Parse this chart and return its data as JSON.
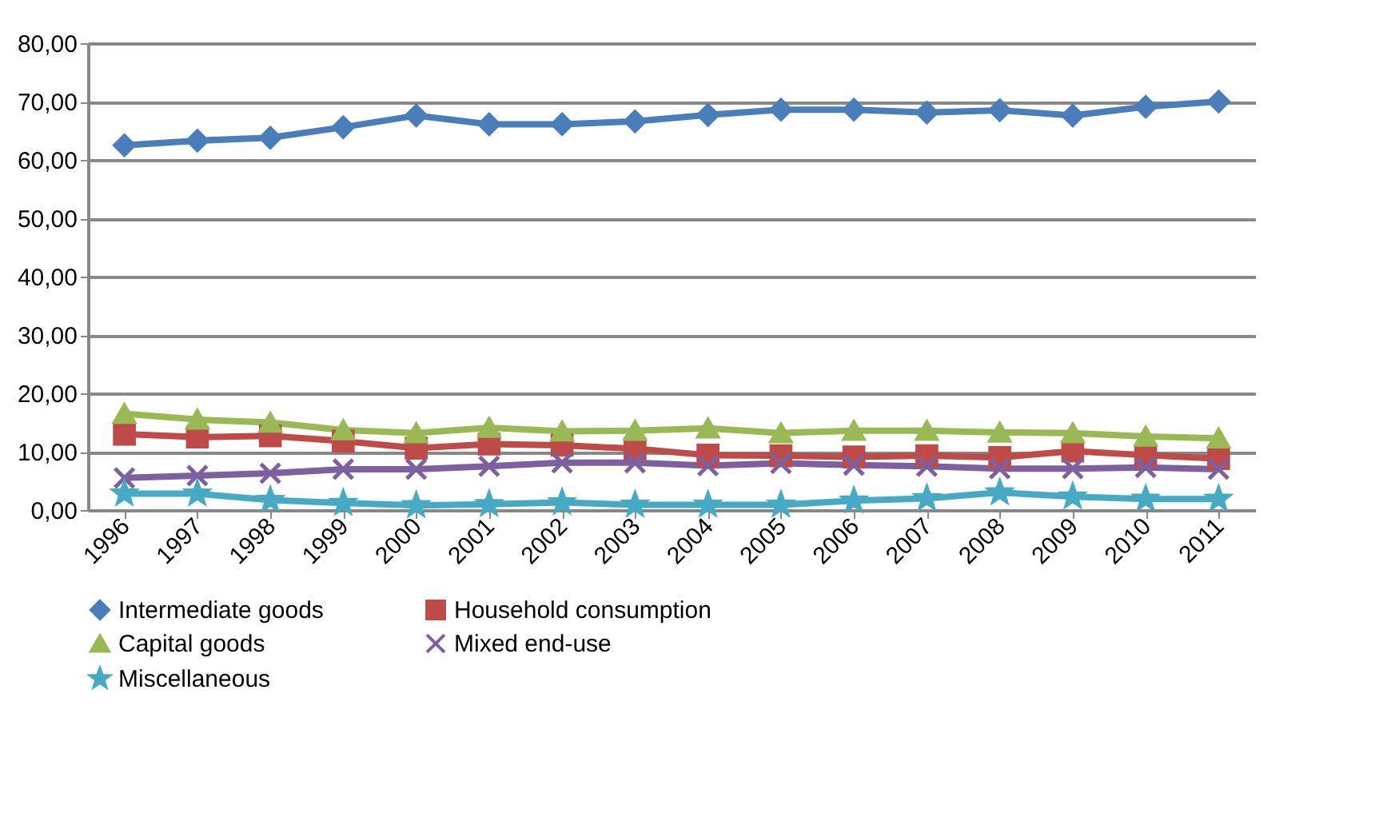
{
  "chart_data": {
    "type": "line",
    "categories": [
      "1996",
      "1997",
      "1998",
      "1999",
      "2000",
      "2001",
      "2002",
      "2003",
      "2004",
      "2005",
      "2006",
      "2007",
      "2008",
      "2009",
      "2010",
      "2011"
    ],
    "series": [
      {
        "name": "Intermediate goods",
        "color": "#4a7ebb",
        "marker": "diamond",
        "values": [
          62.5,
          63.3,
          63.8,
          65.6,
          67.6,
          66.1,
          66.1,
          66.6,
          67.7,
          68.6,
          68.6,
          68.1,
          68.5,
          67.6,
          69.1,
          70.0
        ]
      },
      {
        "name": "Household consumption",
        "color": "#be4b48",
        "marker": "square",
        "values": [
          13.0,
          12.5,
          12.7,
          11.8,
          10.6,
          11.3,
          11.1,
          10.5,
          9.4,
          9.3,
          9.1,
          9.3,
          9.0,
          10.1,
          9.4,
          8.8
        ]
      },
      {
        "name": "Capital goods",
        "color": "#98b954",
        "marker": "triangle",
        "values": [
          16.5,
          15.5,
          15.0,
          13.7,
          13.2,
          14.1,
          13.5,
          13.6,
          14.0,
          13.2,
          13.6,
          13.6,
          13.3,
          13.2,
          12.6,
          12.3
        ]
      },
      {
        "name": "Mixed end-use",
        "color": "#7d60a0",
        "marker": "cross",
        "values": [
          5.5,
          5.9,
          6.3,
          7.0,
          7.0,
          7.5,
          8.1,
          8.1,
          7.6,
          8.0,
          7.7,
          7.5,
          7.1,
          7.1,
          7.3,
          7.0
        ]
      },
      {
        "name": "Miscellaneous",
        "color": "#46aac5",
        "marker": "star",
        "values": [
          2.8,
          2.8,
          1.7,
          1.2,
          0.8,
          1.0,
          1.3,
          0.9,
          0.9,
          0.9,
          1.6,
          2.0,
          3.0,
          2.3,
          1.9,
          1.9
        ]
      }
    ],
    "ylim": [
      0,
      80
    ],
    "yticks": [
      {
        "value": 0,
        "label": "0,00"
      },
      {
        "value": 10,
        "label": "10,00"
      },
      {
        "value": 20,
        "label": "20,00"
      },
      {
        "value": 30,
        "label": "30,00"
      },
      {
        "value": 40,
        "label": "40,00"
      },
      {
        "value": 50,
        "label": "50,00"
      },
      {
        "value": 60,
        "label": "60,00"
      },
      {
        "value": 70,
        "label": "70,00"
      },
      {
        "value": 80,
        "label": "80,00"
      }
    ],
    "grid": "y",
    "legend": "bottom",
    "line_style": "solid"
  }
}
